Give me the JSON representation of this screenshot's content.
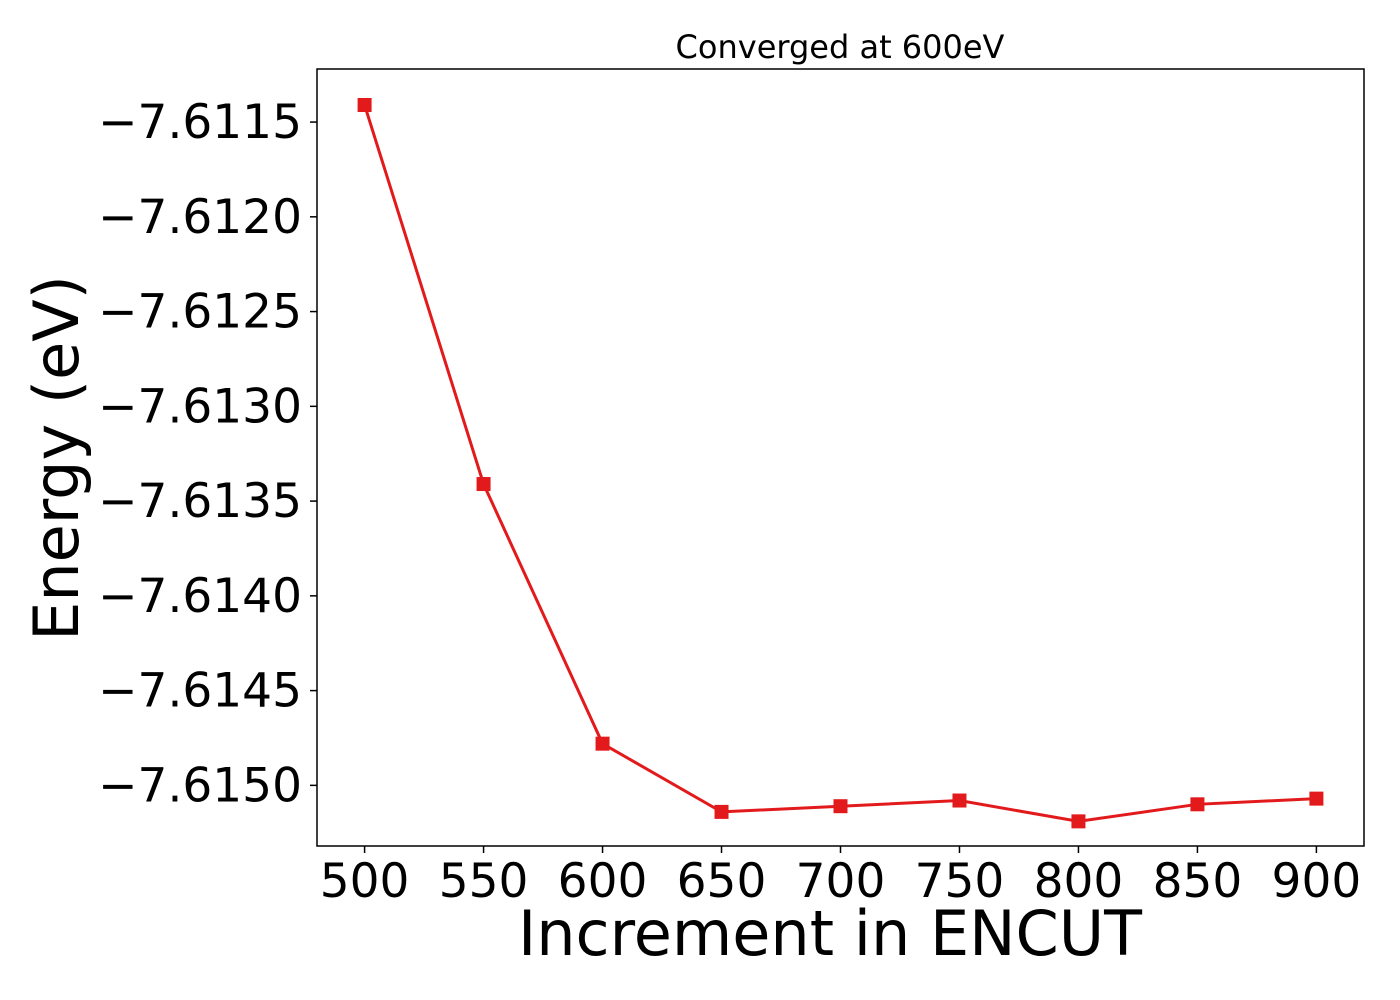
{
  "chart_data": {
    "type": "line",
    "title": "Converged at 600eV",
    "xlabel": "Increment in ENCUT",
    "ylabel": "Energy (eV)",
    "x": [
      500,
      550,
      600,
      650,
      700,
      750,
      800,
      850,
      900
    ],
    "series": [
      {
        "values": [
          -7.61141,
          -7.61341,
          -7.61478,
          -7.61514,
          -7.61511,
          -7.61508,
          -7.61519,
          -7.6151,
          -7.61507
        ],
        "color": "#e31a1c",
        "marker": "square"
      }
    ],
    "xlim": [
      480,
      920
    ],
    "ylim": [
      -7.61532,
      -7.61122
    ],
    "x_ticks": [
      500,
      550,
      600,
      650,
      700,
      750,
      800,
      850,
      900
    ],
    "x_tick_labels": [
      "500",
      "550",
      "600",
      "650",
      "700",
      "750",
      "800",
      "850",
      "900"
    ],
    "y_ticks": [
      -7.6115,
      -7.612,
      -7.6125,
      -7.613,
      -7.6135,
      -7.614,
      -7.6145,
      -7.615
    ],
    "y_tick_labels": [
      "−7.6115",
      "−7.6120",
      "−7.6125",
      "−7.6130",
      "−7.6135",
      "−7.6140",
      "−7.6145",
      "−7.6150"
    ],
    "grid": false,
    "legend": "none"
  }
}
